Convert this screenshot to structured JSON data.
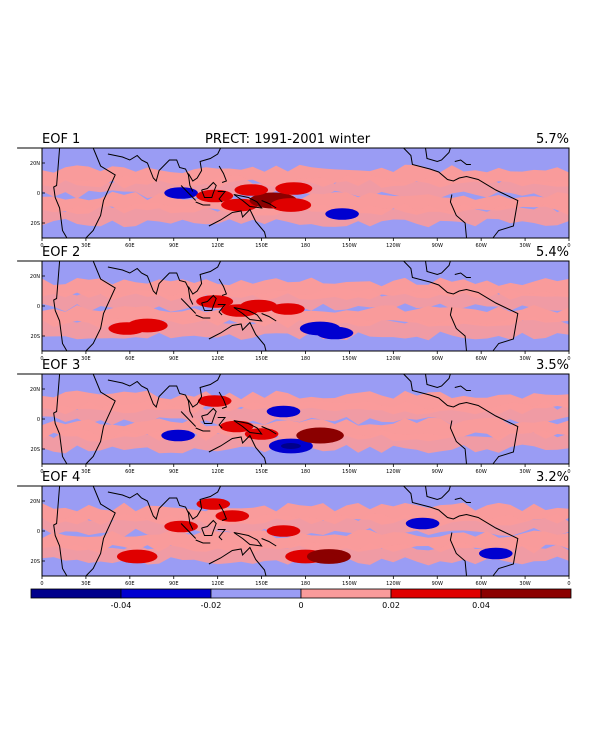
{
  "chart_data": {
    "type": "heatmap",
    "title": "PRECT: 1991-2001 winter",
    "panels": [
      {
        "label": "EOF 1",
        "variance_pct": "5.7%",
        "features": [
          {
            "lon": 95,
            "lat": 0,
            "value": -0.025
          },
          {
            "lon": 118,
            "lat": -2,
            "value": 0.03
          },
          {
            "lon": 135,
            "lat": -8,
            "value": 0.03
          },
          {
            "lon": 158,
            "lat": -5,
            "value": 0.045
          },
          {
            "lon": 170,
            "lat": -8,
            "value": 0.035
          },
          {
            "lon": 172,
            "lat": 3,
            "value": 0.03
          },
          {
            "lon": 205,
            "lat": -14,
            "value": -0.025
          },
          {
            "lon": 143,
            "lat": 2,
            "value": 0.025
          }
        ]
      },
      {
        "label": "EOF 2",
        "variance_pct": "5.4%",
        "features": [
          {
            "lon": 58,
            "lat": -15,
            "value": 0.03
          },
          {
            "lon": 72,
            "lat": -13,
            "value": 0.035
          },
          {
            "lon": 118,
            "lat": 3,
            "value": 0.03
          },
          {
            "lon": 135,
            "lat": -3,
            "value": 0.03
          },
          {
            "lon": 148,
            "lat": 0,
            "value": 0.03
          },
          {
            "lon": 168,
            "lat": -2,
            "value": 0.025
          },
          {
            "lon": 190,
            "lat": -15,
            "value": -0.035
          },
          {
            "lon": 200,
            "lat": -18,
            "value": -0.03
          }
        ]
      },
      {
        "label": "EOF 3",
        "variance_pct": "3.5%",
        "features": [
          {
            "lon": 93,
            "lat": -11,
            "value": -0.025
          },
          {
            "lon": 118,
            "lat": 12,
            "value": 0.025
          },
          {
            "lon": 133,
            "lat": -5,
            "value": 0.025
          },
          {
            "lon": 165,
            "lat": 5,
            "value": -0.025
          },
          {
            "lon": 170,
            "lat": -18,
            "value": -0.04
          },
          {
            "lon": 190,
            "lat": -11,
            "value": 0.045
          },
          {
            "lon": 150,
            "lat": -10,
            "value": 0.025
          }
        ]
      },
      {
        "label": "EOF 4",
        "variance_pct": "3.2%",
        "features": [
          {
            "lon": 65,
            "lat": -17,
            "value": 0.035
          },
          {
            "lon": 95,
            "lat": 3,
            "value": 0.025
          },
          {
            "lon": 117,
            "lat": 18,
            "value": 0.025
          },
          {
            "lon": 130,
            "lat": 10,
            "value": 0.025
          },
          {
            "lon": 165,
            "lat": 0,
            "value": 0.025
          },
          {
            "lon": 180,
            "lat": -17,
            "value": 0.035
          },
          {
            "lon": 196,
            "lat": -17,
            "value": 0.04
          },
          {
            "lon": 260,
            "lat": 5,
            "value": -0.025
          },
          {
            "lon": 310,
            "lat": -15,
            "value": -0.025
          }
        ]
      }
    ],
    "x_tick_labels": [
      "0",
      "30E",
      "60E",
      "90E",
      "120E",
      "150E",
      "180",
      "150W",
      "120W",
      "90W",
      "60W",
      "30W",
      "0"
    ],
    "y_tick_labels": [
      "20N",
      "0",
      "20S"
    ],
    "lon_range": [
      0,
      360
    ],
    "lat_range": [
      -30,
      30
    ],
    "colorbar": {
      "tick_labels": [
        "-0.04",
        "-0.02",
        "0",
        "0.02",
        "0.04"
      ],
      "levels": [
        -0.06,
        -0.04,
        -0.02,
        0,
        0.02,
        0.04,
        0.06
      ],
      "colors": [
        "#00008b",
        "#0000d0",
        "#9a9cf4",
        "#f99b9b",
        "#e00000",
        "#8b0000"
      ]
    }
  }
}
